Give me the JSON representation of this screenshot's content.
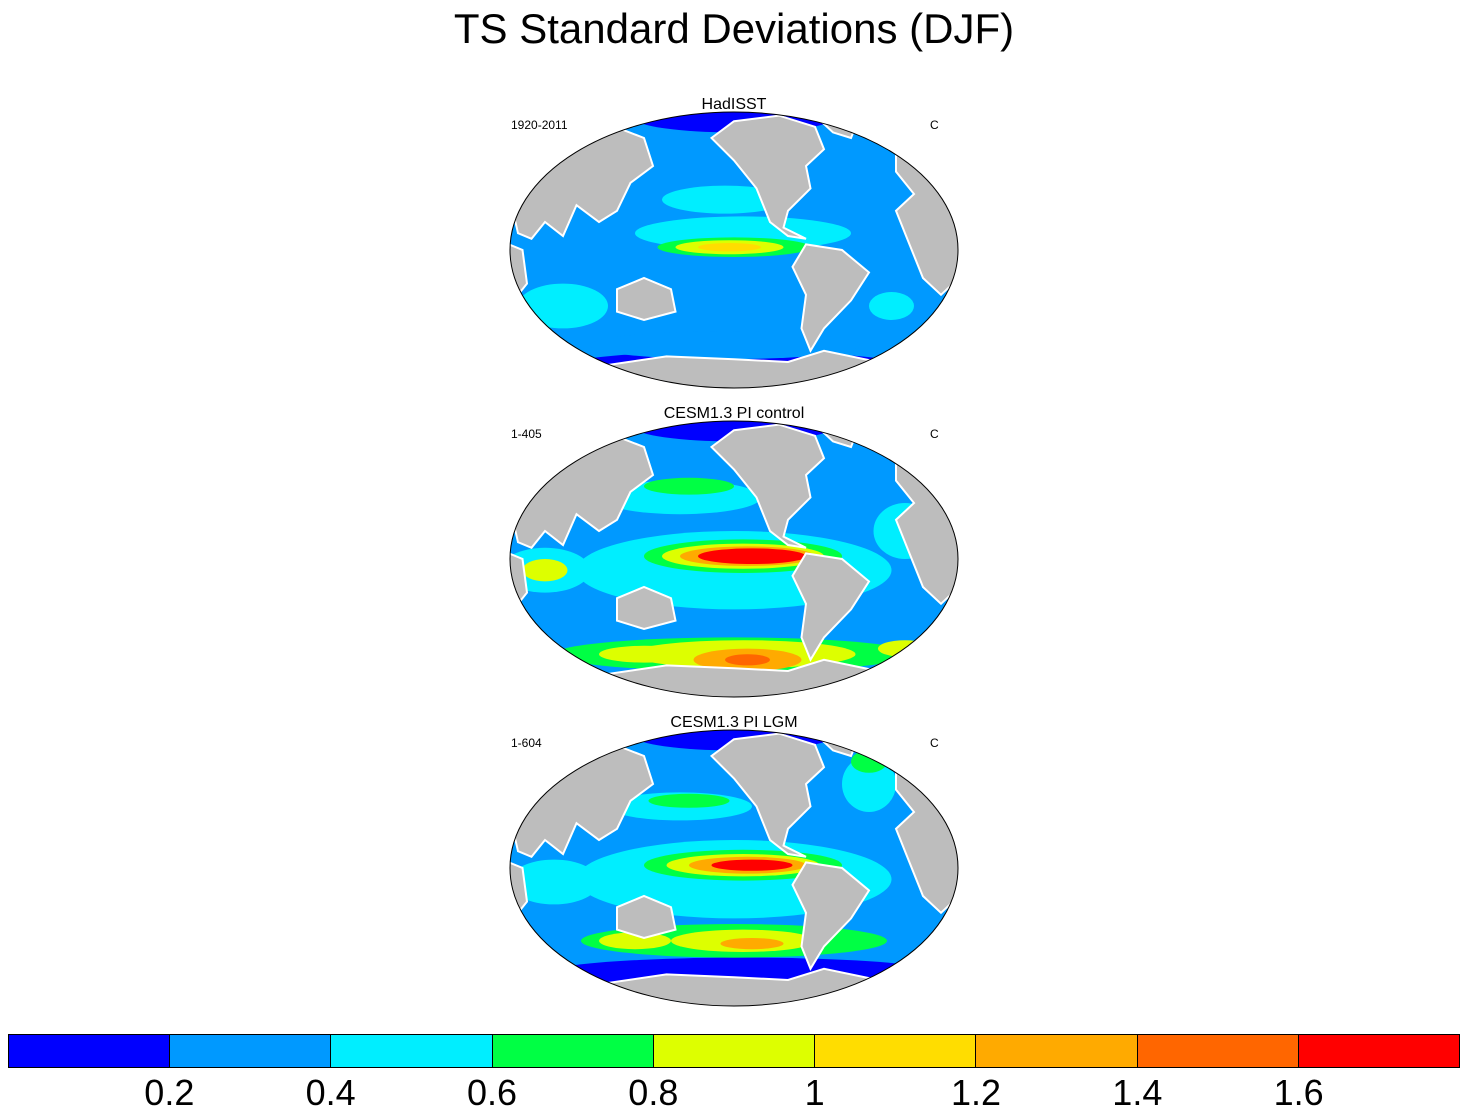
{
  "title": "TS Standard Deviations (DJF)",
  "panels": [
    {
      "name": "HadISST",
      "period": "1920-2011",
      "units": "C",
      "variant": "obs"
    },
    {
      "name": "CESM1.3 PI control",
      "period": "1-405",
      "units": "C",
      "variant": "pi"
    },
    {
      "name": "CESM1.3 PI LGM",
      "period": "1-604",
      "units": "C",
      "variant": "lgm"
    }
  ],
  "colorbar": {
    "colors": [
      "#0000ff",
      "#0099ff",
      "#00eeff",
      "#00ff44",
      "#ddff00",
      "#ffdd00",
      "#ffaa00",
      "#ff6600",
      "#ff0000"
    ],
    "labels": [
      "0.2",
      "0.4",
      "0.6",
      "0.8",
      "1",
      "1.2",
      "1.4",
      "1.6"
    ]
  },
  "map_colors": {
    "land": "#bdbdbd",
    "outline": "#000000"
  }
}
